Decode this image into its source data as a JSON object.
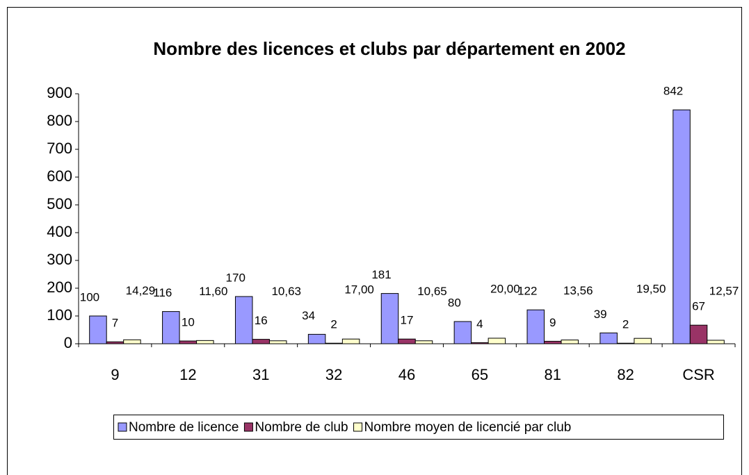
{
  "chart_data": {
    "type": "bar",
    "title": "Nombre des licences et clubs par département en 2002",
    "categories": [
      "9",
      "12",
      "31",
      "32",
      "46",
      "65",
      "81",
      "82",
      "CSR"
    ],
    "series": [
      {
        "name": "Nombre de licence",
        "color": "#9999ff",
        "values": [
          100,
          116,
          170,
          34,
          181,
          80,
          122,
          39,
          842
        ]
      },
      {
        "name": "Nombre de club",
        "color": "#993366",
        "values": [
          7,
          10,
          16,
          2,
          17,
          4,
          9,
          2,
          67
        ]
      },
      {
        "name": "Nombre moyen de licencié par club",
        "color": "#ffffcc",
        "values": [
          14.29,
          11.6,
          10.63,
          17,
          10.65,
          20,
          13.56,
          19.5,
          12.57
        ],
        "value_labels": [
          "14,29",
          "11,60",
          "10,63",
          "17,00",
          "10,65",
          "20,00",
          "13,56",
          "19,50",
          "12,57"
        ]
      }
    ],
    "ylim": [
      0,
      900
    ],
    "yticks": [
      0,
      100,
      200,
      300,
      400,
      500,
      600,
      700,
      800,
      900
    ],
    "grid": false
  }
}
